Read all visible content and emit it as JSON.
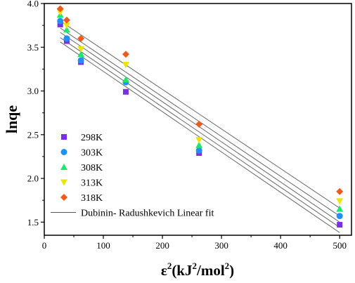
{
  "chart_data": {
    "type": "scatter",
    "ylabel": "lnqe",
    "xlabel_base": "ε",
    "xlabel_sup": "2",
    "xlabel_paren_open": "(kJ",
    "xlabel_sup2": "2",
    "xlabel_rest": "/mol",
    "xlabel_sup3": "2",
    "xlabel_paren_close": ")",
    "xlim": [
      0,
      520
    ],
    "ylim": [
      1.35,
      4.0
    ],
    "x_ticks": [
      0,
      100,
      200,
      300,
      400,
      500
    ],
    "x_tick_labels": [
      "0",
      "100",
      "200",
      "300",
      "400",
      "500"
    ],
    "y_ticks": [
      1.5,
      2.0,
      2.5,
      3.0,
      3.5,
      4.0
    ],
    "y_tick_labels": [
      "1.5",
      "2.0",
      "2.5",
      "3.0",
      "3.5",
      "4.0"
    ],
    "legend_position": "left",
    "series": [
      {
        "name": "298K",
        "marker": "square",
        "color": "#7b2fe0",
        "x": [
          27,
          38,
          62,
          138,
          262,
          500
        ],
        "y": [
          3.76,
          3.57,
          3.33,
          2.99,
          2.29,
          1.47
        ],
        "fit": [
          3.56,
          1.38
        ]
      },
      {
        "name": "303K",
        "marker": "circle",
        "color": "#1e90ff",
        "x": [
          27,
          38,
          62,
          138,
          262,
          500
        ],
        "y": [
          3.8,
          3.6,
          3.35,
          3.1,
          2.32,
          1.57
        ],
        "fit": [
          3.61,
          1.44
        ]
      },
      {
        "name": "308K",
        "marker": "triangle-up",
        "color": "#1ee66e",
        "x": [
          27,
          38,
          62,
          138,
          262,
          500
        ],
        "y": [
          3.87,
          3.7,
          3.42,
          3.13,
          2.38,
          1.65
        ],
        "fit": [
          3.67,
          1.5
        ]
      },
      {
        "name": "313K",
        "marker": "triangle-down",
        "color": "#e6e600",
        "x": [
          27,
          38,
          62,
          138,
          262,
          500
        ],
        "y": [
          3.9,
          3.75,
          3.48,
          3.3,
          2.44,
          1.74
        ],
        "fit": [
          3.72,
          1.57
        ]
      },
      {
        "name": "318K",
        "marker": "diamond",
        "color": "#f05a1e",
        "x": [
          27,
          38,
          62,
          138,
          262,
          500
        ],
        "y": [
          3.94,
          3.81,
          3.6,
          3.42,
          2.62,
          1.85
        ],
        "fit": [
          3.8,
          1.66
        ]
      }
    ],
    "fit_legend": "Dubinin- Radushkevich Linear fit",
    "fit_color": "#555555",
    "fit_x_range": [
      27,
      500
    ]
  }
}
